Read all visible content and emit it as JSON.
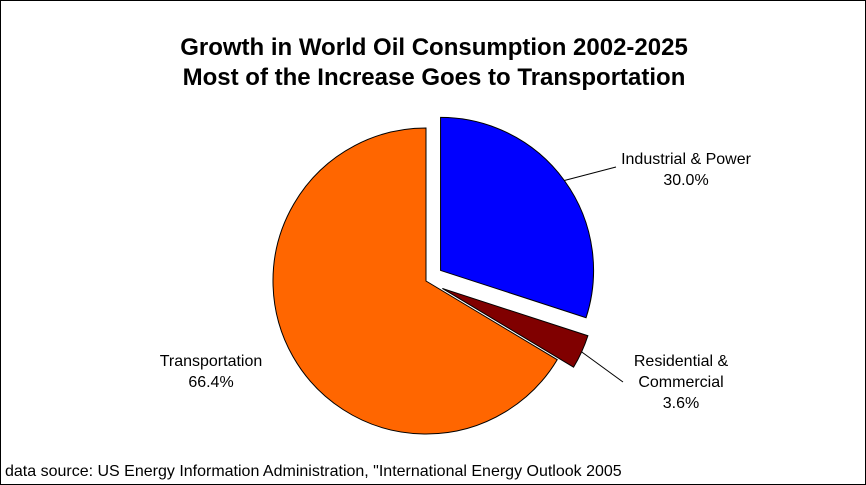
{
  "chart_data": {
    "type": "pie",
    "title": "Growth in World Oil Consumption 2002-2025",
    "subtitle": "Most of the Increase Goes to Transportation",
    "slices": [
      {
        "label": "Industrial & Power",
        "value": 30.0,
        "value_label": "30.0%",
        "color": "#0000FF",
        "exploded": true
      },
      {
        "label": "Residential & Commercial",
        "label_lines": [
          "Residential &",
          "Commercial"
        ],
        "value": 3.6,
        "value_label": "3.6%",
        "color": "#800000",
        "exploded": true
      },
      {
        "label": "Transportation",
        "value": 66.4,
        "value_label": "66.4%",
        "color": "#FF6600",
        "exploded": false
      }
    ],
    "start_angle": "12 o'clock",
    "direction": "clockwise"
  },
  "source_note": "data source:  US Energy Information Administration, \"International Energy Outlook 2005"
}
